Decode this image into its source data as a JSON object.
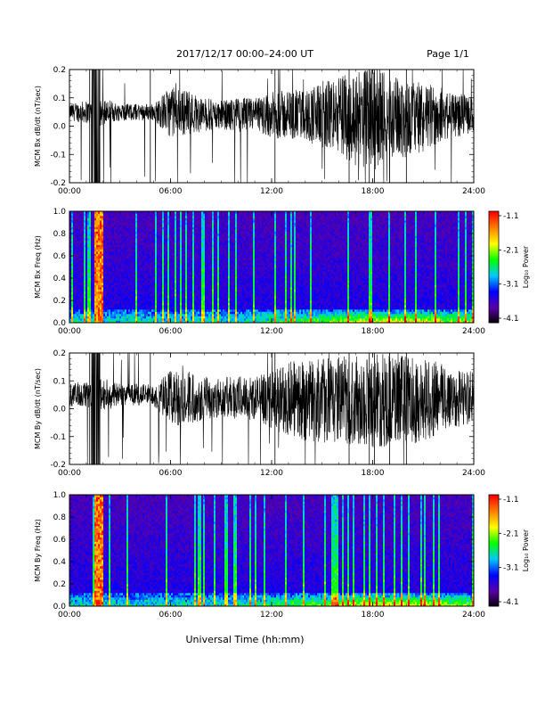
{
  "header": {
    "title": "2017/12/17   00:00–24:00 UT",
    "page": "Page 1/1"
  },
  "footer": {
    "xlabel": "Universal Time (hh:mm)"
  },
  "colorbar": {
    "label": "Log₁₀ Power",
    "ticks": [
      "-1.1",
      "-2.1",
      "-3.1",
      "-4.1"
    ]
  },
  "chart_data": [
    {
      "type": "line",
      "ylabel": "MCM Bx dB/dt (nT/sec)",
      "xlim": [
        0,
        24
      ],
      "ylim": [
        -0.2,
        0.2
      ],
      "xticks": [
        "00:00",
        "06:00",
        "12:00",
        "18:00",
        "24:00"
      ],
      "yticks": [
        "0.2",
        "0.1",
        "0.0",
        "-0.1",
        "-0.2"
      ],
      "envelope": {
        "description": "dense noise trace; values are approximate amplitude envelope",
        "x_hours": [
          0,
          1,
          2,
          3,
          4,
          5,
          6,
          7,
          8,
          9,
          10,
          11,
          12,
          13,
          14,
          15,
          16,
          17,
          18,
          19,
          20,
          21,
          22,
          23,
          24
        ],
        "center": [
          0.05,
          0.05,
          0.05,
          0.05,
          0.05,
          0.05,
          0.05,
          0.05,
          0.04,
          0.04,
          0.04,
          0.04,
          0.04,
          0.04,
          0.04,
          0.04,
          0.04,
          0.03,
          0.03,
          0.03,
          0.03,
          0.03,
          0.04,
          0.04,
          0.04
        ],
        "amplitude": [
          0.03,
          0.04,
          0.05,
          0.03,
          0.03,
          0.03,
          0.09,
          0.08,
          0.06,
          0.05,
          0.06,
          0.06,
          0.08,
          0.09,
          0.09,
          0.12,
          0.14,
          0.17,
          0.18,
          0.15,
          0.14,
          0.12,
          0.1,
          0.08,
          0.06
        ]
      }
    },
    {
      "type": "heatmap",
      "ylabel": "MCM Bx Freq (Hz)",
      "xlim": [
        0,
        24
      ],
      "ylim": [
        0,
        1.0
      ],
      "xticks": [
        "00:00",
        "06:00",
        "12:00",
        "18:00",
        "24:00"
      ],
      "yticks": [
        "1.0",
        "0.8",
        "0.6",
        "0.4",
        "0.2",
        "0.0"
      ],
      "zlim": [
        -4.1,
        -1.1
      ],
      "colormap": [
        "#000000",
        "#5a00a8",
        "#0000ff",
        "#00c8ff",
        "#00ff00",
        "#ffff00",
        "#ff8000",
        "#ff0000"
      ]
    },
    {
      "type": "line",
      "ylabel": "MCM By dB/dt (nT/sec)",
      "xlim": [
        0,
        24
      ],
      "ylim": [
        -0.2,
        0.2
      ],
      "xticks": [
        "00:00",
        "06:00",
        "12:00",
        "18:00",
        "24:00"
      ],
      "yticks": [
        "0.2",
        "0.1",
        "0.0",
        "-0.1",
        "-0.2"
      ],
      "envelope": {
        "description": "dense noise trace; values are approximate amplitude envelope",
        "x_hours": [
          0,
          1,
          2,
          3,
          4,
          5,
          6,
          7,
          8,
          9,
          10,
          11,
          12,
          13,
          14,
          15,
          16,
          17,
          18,
          19,
          20,
          21,
          22,
          23,
          24
        ],
        "center": [
          0.05,
          0.05,
          0.05,
          0.05,
          0.05,
          0.05,
          0.04,
          0.04,
          0.04,
          0.04,
          0.04,
          0.04,
          0.03,
          0.03,
          0.03,
          0.03,
          0.03,
          0.03,
          0.03,
          0.03,
          0.03,
          0.03,
          0.04,
          0.04,
          0.04
        ],
        "amplitude": [
          0.04,
          0.05,
          0.06,
          0.04,
          0.04,
          0.04,
          0.1,
          0.1,
          0.08,
          0.07,
          0.08,
          0.08,
          0.1,
          0.14,
          0.15,
          0.15,
          0.16,
          0.16,
          0.17,
          0.17,
          0.16,
          0.15,
          0.13,
          0.11,
          0.09
        ]
      }
    },
    {
      "type": "heatmap",
      "ylabel": "MCM By Freq (Hz)",
      "xlim": [
        0,
        24
      ],
      "ylim": [
        0,
        1.0
      ],
      "xticks": [
        "00:00",
        "06:00",
        "12:00",
        "18:00",
        "24:00"
      ],
      "yticks": [
        "1.0",
        "0.8",
        "0.6",
        "0.4",
        "0.2",
        "0.0"
      ],
      "zlim": [
        -4.1,
        -1.1
      ],
      "colormap": [
        "#000000",
        "#5a00a8",
        "#0000ff",
        "#00c8ff",
        "#00ff00",
        "#ffff00",
        "#ff8000",
        "#ff0000"
      ]
    }
  ]
}
